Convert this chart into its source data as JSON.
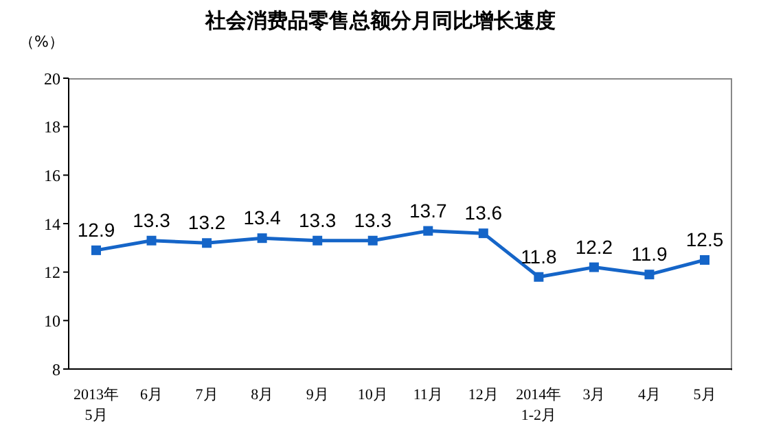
{
  "chart_data": {
    "type": "line",
    "title": "社会消费品零售总额分月同比增长速度",
    "ylabel": "（%）",
    "categories": [
      "2013年\n5月",
      "6月",
      "7月",
      "8月",
      "9月",
      "10月",
      "11月",
      "12月",
      "2014年\n1-2月",
      "3月",
      "4月",
      "5月"
    ],
    "series": [
      {
        "color": "#1565c8",
        "values": [
          12.9,
          13.3,
          13.2,
          13.4,
          13.3,
          13.3,
          13.7,
          13.6,
          11.8,
          12.2,
          11.9,
          12.5
        ]
      }
    ],
    "ylim": [
      8,
      20
    ],
    "yticks": [
      8,
      10,
      12,
      14,
      16,
      18,
      20
    ],
    "grid": false,
    "legend": false,
    "marker": "square",
    "line_style": "solid",
    "data_labels": true
  }
}
